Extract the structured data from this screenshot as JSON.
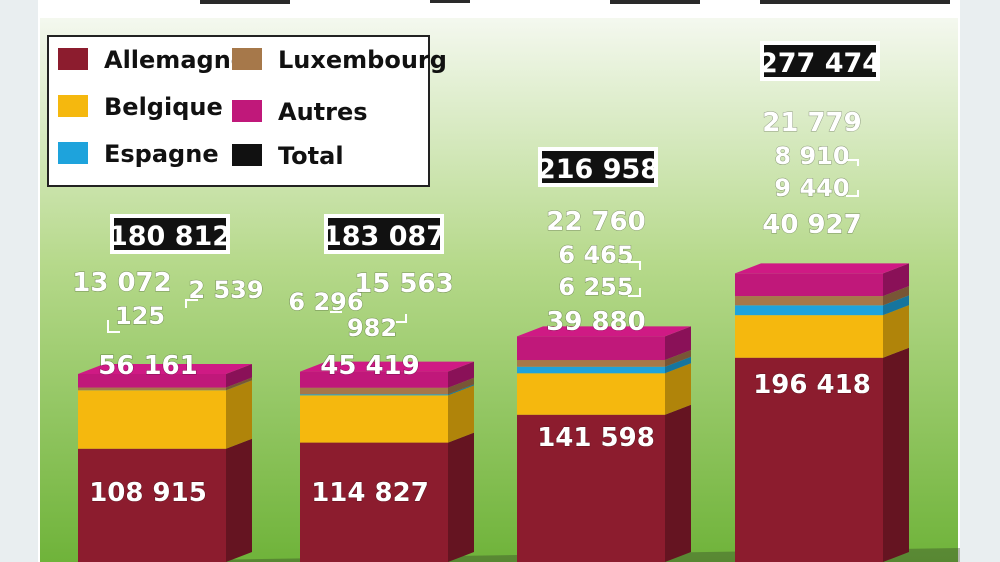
{
  "chart_data": {
    "type": "bar",
    "stacked": true,
    "title": "",
    "xlabel": "",
    "ylabel": "",
    "categories": [
      "",
      "",
      "",
      ""
    ],
    "series": [
      {
        "name": "Allemagne",
        "color": "#8c1c2e",
        "values": [
          108915,
          114827,
          141598,
          196418
        ]
      },
      {
        "name": "Belgique",
        "color": "#f5b80e",
        "values": [
          56161,
          45419,
          39880,
          40927
        ]
      },
      {
        "name": "Espagne",
        "color": "#1ea3dc",
        "values": [
          125,
          982,
          6255,
          9440
        ]
      },
      {
        "name": "Luxembourg",
        "color": "#a6784a",
        "values": [
          2539,
          6296,
          6465,
          8910
        ]
      },
      {
        "name": "Autres",
        "color": "#c0187a",
        "values": [
          13072,
          15563,
          22760,
          21779
        ]
      }
    ],
    "totals": [
      180812,
      183087,
      216958,
      277474
    ],
    "total_legend": {
      "name": "Total",
      "color": "#111111"
    },
    "value_labels": {
      "Allemagne": [
        "108 915",
        "114 827",
        "141 598",
        "196 418"
      ],
      "Belgique": [
        "56 161",
        "45 419",
        "39 880",
        "40 927"
      ],
      "Espagne": [
        "125",
        "982",
        "6 255",
        "9 440"
      ],
      "Luxembourg": [
        "2 539",
        "6 296",
        "6 465",
        "8 910"
      ],
      "Autres": [
        "13 072",
        "15 563",
        "22 760",
        "21 779"
      ],
      "Total": [
        "180 812",
        "183 087",
        "216 958",
        "277 474"
      ]
    },
    "legend_position": "top-left",
    "grid": false,
    "background": {
      "top": "#f4f8ef",
      "bottom": "#6fb33a"
    }
  }
}
